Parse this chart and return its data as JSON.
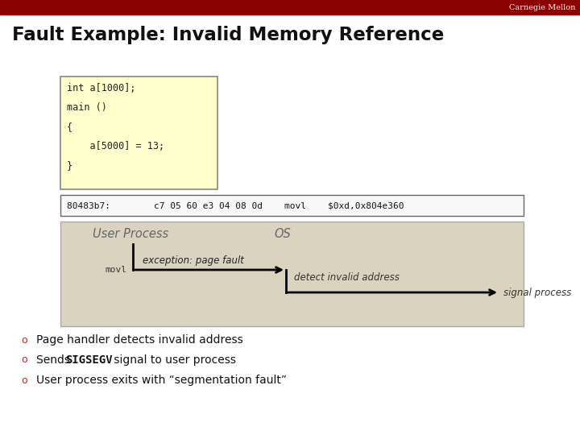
{
  "title": "Fault Example: Invalid Memory Reference",
  "header_bar_color": "#8B0000",
  "header_text": "Carnegie Mellon",
  "bg_color": "#ffffff",
  "code_box_color": "#FFFFCC",
  "code_box_border": "#888888",
  "code_text_lines": [
    "int a[1000];",
    "main ()",
    "{",
    "    a[5000] = 13;",
    "}"
  ],
  "asm_text": "80483b7:        c7 05 60 e3 04 08 0d    movl    $0xd,0x804e360",
  "diagram_bg": "#D9D3C0",
  "diagram_border": "#aaaaaa",
  "diagram_label_user": "User Process",
  "diagram_label_os": "OS",
  "diagram_movl": "movl",
  "diagram_exception": "exception: page fault",
  "diagram_detect": "detect invalid address",
  "diagram_signal": "signal process",
  "bullet1": "Page handler detects invalid address",
  "bullet2_pre": "Sends ",
  "bullet2_bold": "SIGSEGV",
  "bullet2_post": " signal to user process",
  "bullet3": "User process exits with “segmentation fault”",
  "bullet_color": "#cc2222"
}
